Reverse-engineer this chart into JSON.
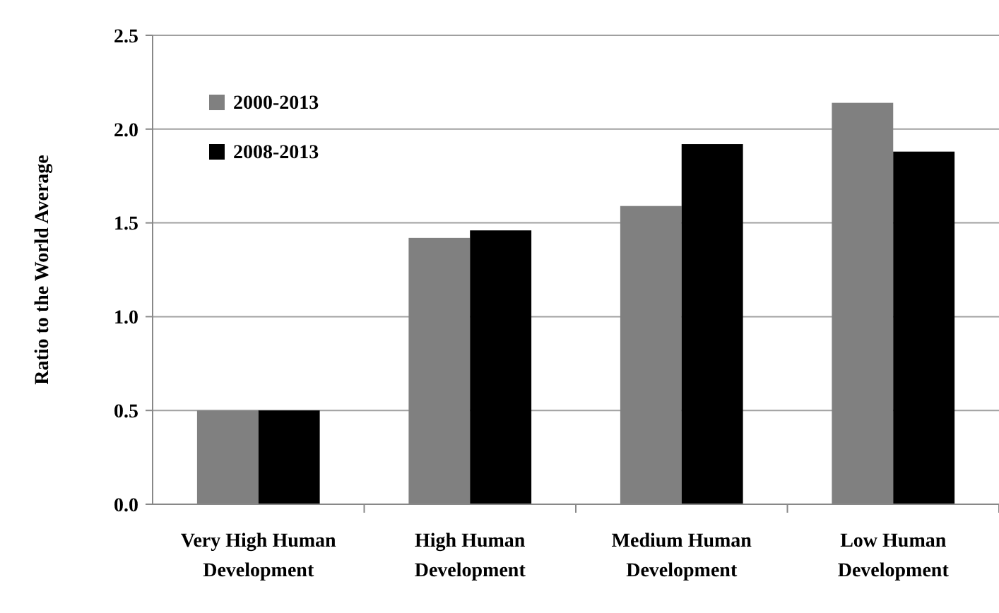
{
  "chart_data": {
    "type": "bar",
    "ylabel": "Ratio to the World Average",
    "categories": [
      "Very High Human Development",
      "High Human Development",
      "Medium Human Development",
      "Low Human Development"
    ],
    "series": [
      {
        "name": "2000-2013",
        "color": "#808080",
        "values": [
          0.5,
          1.42,
          1.59,
          2.14
        ]
      },
      {
        "name": "2008-2013",
        "color": "#000000",
        "values": [
          0.5,
          1.46,
          1.92,
          1.88
        ]
      }
    ],
    "ylim": [
      0,
      2.5
    ],
    "yticks": [
      {
        "value": 0,
        "label": "0.0"
      },
      {
        "value": 0.5,
        "label": "0.5"
      },
      {
        "value": 1,
        "label": "1.0"
      },
      {
        "value": 1.5,
        "label": "1.5"
      },
      {
        "value": 2,
        "label": "2.0"
      },
      {
        "value": 2.5,
        "label": "2.5"
      }
    ],
    "grid": "y",
    "legend": "top left"
  }
}
